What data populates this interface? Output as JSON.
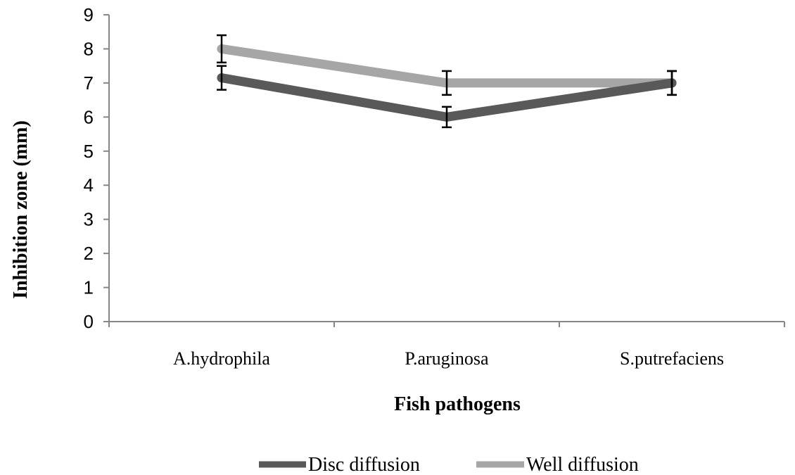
{
  "chart_data": {
    "type": "line",
    "title": "",
    "xlabel": "Fish pathogens",
    "ylabel": "Inhibition zone (mm)",
    "ylim": [
      0,
      9
    ],
    "y_ticks": [
      0,
      1,
      2,
      3,
      4,
      5,
      6,
      7,
      8,
      9
    ],
    "categories": [
      "A.hydrophila",
      "P.aruginosa",
      "S.putrefaciens"
    ],
    "grid": false,
    "legend_position": "bottom",
    "series": [
      {
        "name": "Disc diffusion",
        "values": [
          7.15,
          6.0,
          7.0
        ],
        "error": [
          0.35,
          0.3,
          0.35
        ],
        "color": "#595959"
      },
      {
        "name": "Well diffusion",
        "values": [
          8.0,
          7.0,
          7.0
        ],
        "error": [
          0.4,
          0.35,
          0.35
        ],
        "color": "#a6a6a6"
      }
    ]
  }
}
